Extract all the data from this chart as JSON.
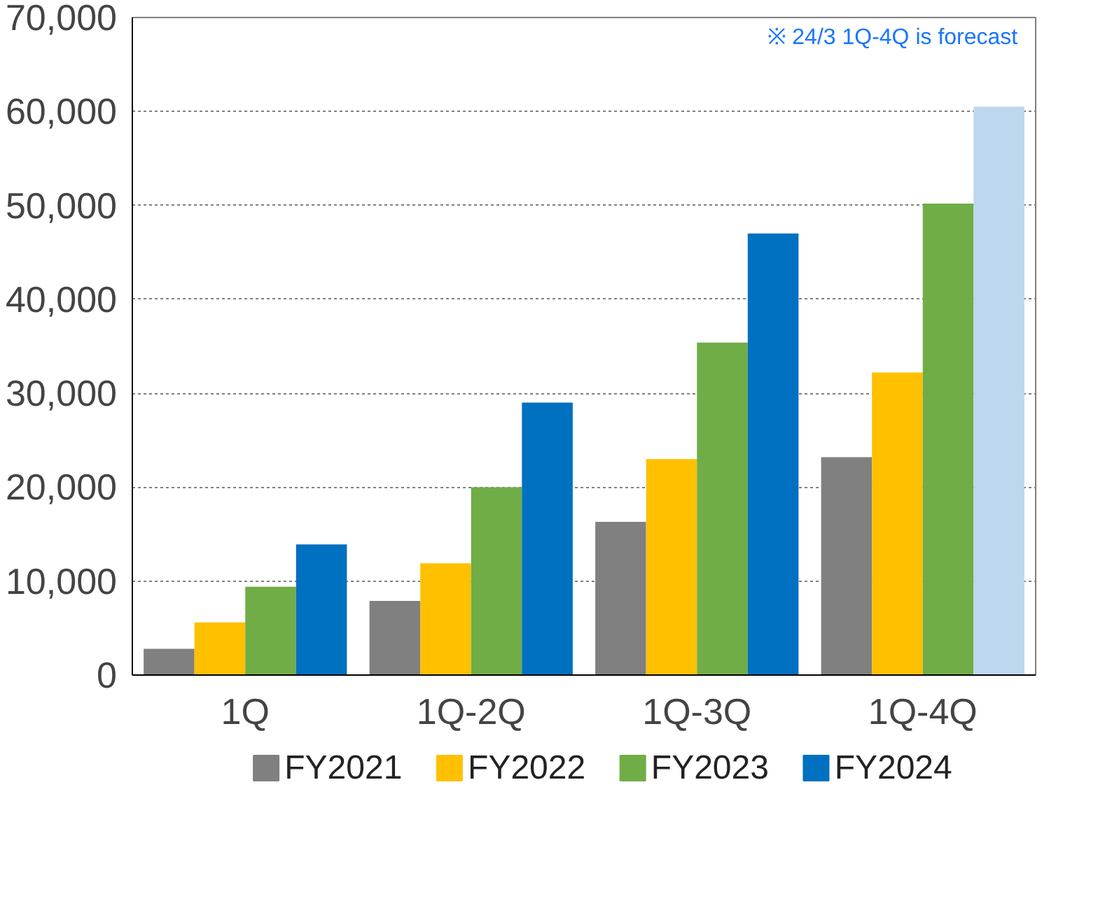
{
  "chart_data": {
    "type": "bar",
    "categories": [
      "1Q",
      "1Q-2Q",
      "1Q-3Q",
      "1Q-4Q"
    ],
    "series": [
      {
        "name": "FY2021",
        "color": "#808080",
        "values": [
          2800,
          7900,
          16300,
          23200
        ]
      },
      {
        "name": "FY2022",
        "color": "#ffc000",
        "values": [
          5600,
          11900,
          23000,
          32200
        ]
      },
      {
        "name": "FY2023",
        "color": "#70ad47",
        "values": [
          9400,
          20000,
          35400,
          50200
        ]
      },
      {
        "name": "FY2024",
        "color": "#0070c0",
        "colors": [
          null,
          null,
          null,
          "#bdd7ee"
        ],
        "values": [
          13900,
          29000,
          47000,
          60500
        ]
      }
    ],
    "ylim": [
      0,
      70000
    ],
    "yticks": [
      {
        "value": 0,
        "label": "0"
      },
      {
        "value": 10000,
        "label": "10,000"
      },
      {
        "value": 20000,
        "label": "20,000"
      },
      {
        "value": 30000,
        "label": "30,000"
      },
      {
        "value": 40000,
        "label": "40,000"
      },
      {
        "value": 50000,
        "label": "50,000"
      },
      {
        "value": 60000,
        "label": "60,000"
      },
      {
        "value": 70000,
        "label": "70,000"
      }
    ],
    "grid": "y",
    "legend": "bottom",
    "annotations": [
      "※  24/3 1Q-4Q  is forecast"
    ]
  }
}
